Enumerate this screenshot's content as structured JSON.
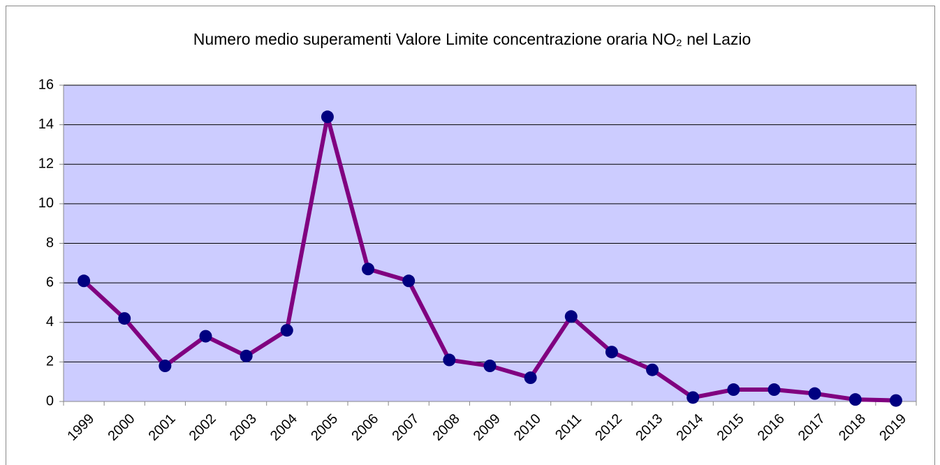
{
  "chart_data": {
    "type": "line",
    "title": "Numero medio superamenti Valore Limite concentrazione oraria NO₂ nel Lazio",
    "categories": [
      "1999",
      "2000",
      "2001",
      "2002",
      "2003",
      "2004",
      "2005",
      "2006",
      "2007",
      "2008",
      "2009",
      "2010",
      "2011",
      "2012",
      "2013",
      "2014",
      "2015",
      "2016",
      "2017",
      "2018",
      "2019"
    ],
    "series": [
      {
        "color": "#800080",
        "marker_color": "#000080",
        "values": [
          6.1,
          4.2,
          1.8,
          3.3,
          2.3,
          3.6,
          14.4,
          6.7,
          6.1,
          2.1,
          1.8,
          1.2,
          4.3,
          2.5,
          1.6,
          0.2,
          0.6,
          0.6,
          0.4,
          0.1,
          0.05
        ]
      }
    ],
    "ylim": [
      0,
      16
    ],
    "yticks": [
      0,
      2,
      4,
      6,
      8,
      10,
      12,
      14,
      16
    ],
    "grid": true,
    "plot_background": "#ccccff"
  }
}
